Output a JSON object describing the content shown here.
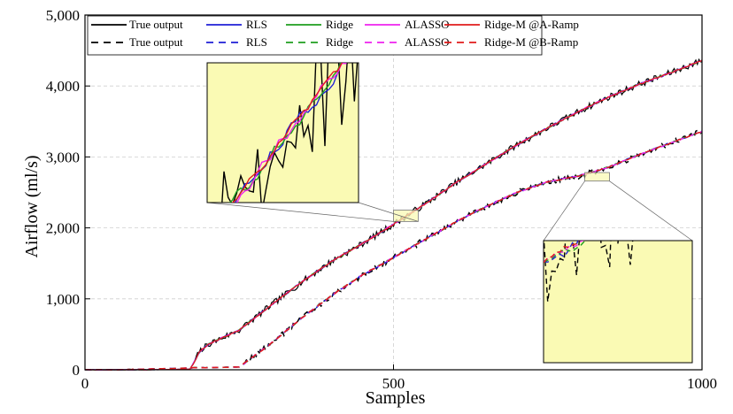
{
  "chart_data": {
    "type": "line",
    "xlabel": "Samples",
    "ylabel": "Airflow (ml/s)",
    "xlim": [
      0,
      1000
    ],
    "ylim": [
      0,
      5000
    ],
    "xticks": [
      "0",
      "500",
      "1000"
    ],
    "yticks": [
      "0",
      "1,000",
      "2,000",
      "3,000",
      "4,000",
      "5,000"
    ],
    "grid": true,
    "legend_position": "top-left",
    "x": [
      0,
      50,
      100,
      150,
      170,
      178,
      185,
      200,
      250,
      300,
      350,
      400,
      450,
      500,
      550,
      600,
      650,
      700,
      750,
      800,
      850,
      900,
      950,
      1000
    ],
    "series": [
      {
        "name": "True output",
        "group": "A-Ramp",
        "style": "solid",
        "color": "#000000",
        "noise": 45,
        "values": [
          0,
          0,
          0,
          5,
          8,
          120,
          250,
          360,
          560,
          900,
          1230,
          1530,
          1780,
          2050,
          2330,
          2630,
          2900,
          3170,
          3410,
          3640,
          3850,
          4030,
          4190,
          4360
        ]
      },
      {
        "name": "RLS",
        "group": "A-Ramp",
        "style": "solid",
        "color": "#1f1fd6",
        "noise": 12,
        "values": [
          0,
          0,
          0,
          5,
          8,
          120,
          250,
          360,
          560,
          900,
          1230,
          1530,
          1780,
          2050,
          2330,
          2630,
          2900,
          3170,
          3410,
          3640,
          3850,
          4030,
          4190,
          4360
        ]
      },
      {
        "name": "Ridge",
        "group": "A-Ramp",
        "style": "solid",
        "color": "#1e9e1e",
        "noise": 10,
        "values": [
          0,
          0,
          0,
          5,
          8,
          120,
          250,
          360,
          560,
          900,
          1230,
          1530,
          1780,
          2050,
          2330,
          2630,
          2900,
          3170,
          3410,
          3640,
          3850,
          4030,
          4190,
          4360
        ]
      },
      {
        "name": "ALASSO",
        "group": "A-Ramp",
        "style": "solid",
        "color": "#ee22ee",
        "noise": 10,
        "values": [
          0,
          0,
          0,
          5,
          8,
          120,
          250,
          360,
          560,
          900,
          1230,
          1530,
          1780,
          2050,
          2330,
          2630,
          2900,
          3170,
          3410,
          3640,
          3850,
          4030,
          4190,
          4360
        ]
      },
      {
        "name": "Ridge-M @A-Ramp",
        "group": "A-Ramp",
        "style": "solid",
        "color": "#e01b1b",
        "noise": 8,
        "values": [
          0,
          0,
          0,
          5,
          8,
          120,
          250,
          360,
          560,
          900,
          1230,
          1530,
          1780,
          2050,
          2330,
          2630,
          2900,
          3170,
          3410,
          3640,
          3850,
          4030,
          4190,
          4360
        ]
      },
      {
        "name": "True output",
        "group": "B-Ramp",
        "style": "dashed",
        "color": "#000000",
        "noise": 40,
        "values": [
          0,
          0,
          10,
          20,
          25,
          30,
          30,
          30,
          40,
          360,
          720,
          1050,
          1340,
          1580,
          1830,
          2080,
          2300,
          2500,
          2650,
          2730,
          2860,
          3040,
          3200,
          3360
        ]
      },
      {
        "name": "RLS",
        "group": "B-Ramp",
        "style": "dashed",
        "color": "#1f1fd6",
        "noise": 10,
        "values": [
          0,
          0,
          10,
          20,
          25,
          30,
          30,
          30,
          40,
          360,
          720,
          1050,
          1340,
          1580,
          1830,
          2080,
          2300,
          2500,
          2650,
          2730,
          2860,
          3040,
          3200,
          3360
        ]
      },
      {
        "name": "Ridge",
        "group": "B-Ramp",
        "style": "dashed",
        "color": "#1e9e1e",
        "noise": 8,
        "values": [
          0,
          0,
          10,
          20,
          25,
          30,
          30,
          30,
          40,
          360,
          720,
          1050,
          1340,
          1580,
          1830,
          2080,
          2300,
          2500,
          2650,
          2730,
          2860,
          3040,
          3200,
          3360
        ]
      },
      {
        "name": "ALASSO",
        "group": "B-Ramp",
        "style": "dashed",
        "color": "#ee22ee",
        "noise": 8,
        "values": [
          0,
          0,
          10,
          20,
          25,
          30,
          30,
          30,
          40,
          360,
          720,
          1050,
          1340,
          1580,
          1830,
          2080,
          2300,
          2500,
          2650,
          2730,
          2860,
          3040,
          3200,
          3360
        ]
      },
      {
        "name": "Ridge-M @B-Ramp",
        "group": "B-Ramp",
        "style": "dashed",
        "color": "#e01b1b",
        "noise": 6,
        "values": [
          0,
          0,
          10,
          20,
          25,
          30,
          30,
          30,
          40,
          360,
          720,
          1050,
          1340,
          1580,
          1830,
          2080,
          2300,
          2500,
          2650,
          2730,
          2860,
          3040,
          3200,
          3360
        ]
      }
    ],
    "insets": [
      {
        "name": "A-Ramp zoom",
        "group": "A-Ramp",
        "xrange": [
          500,
          540
        ],
        "yrange": [
          2090,
          2250
        ],
        "background": "#fafab4"
      },
      {
        "name": "B-Ramp zoom",
        "group": "B-Ramp",
        "xrange": [
          810,
          850
        ],
        "yrange": [
          2660,
          2780
        ],
        "background": "#fafab4"
      }
    ]
  }
}
